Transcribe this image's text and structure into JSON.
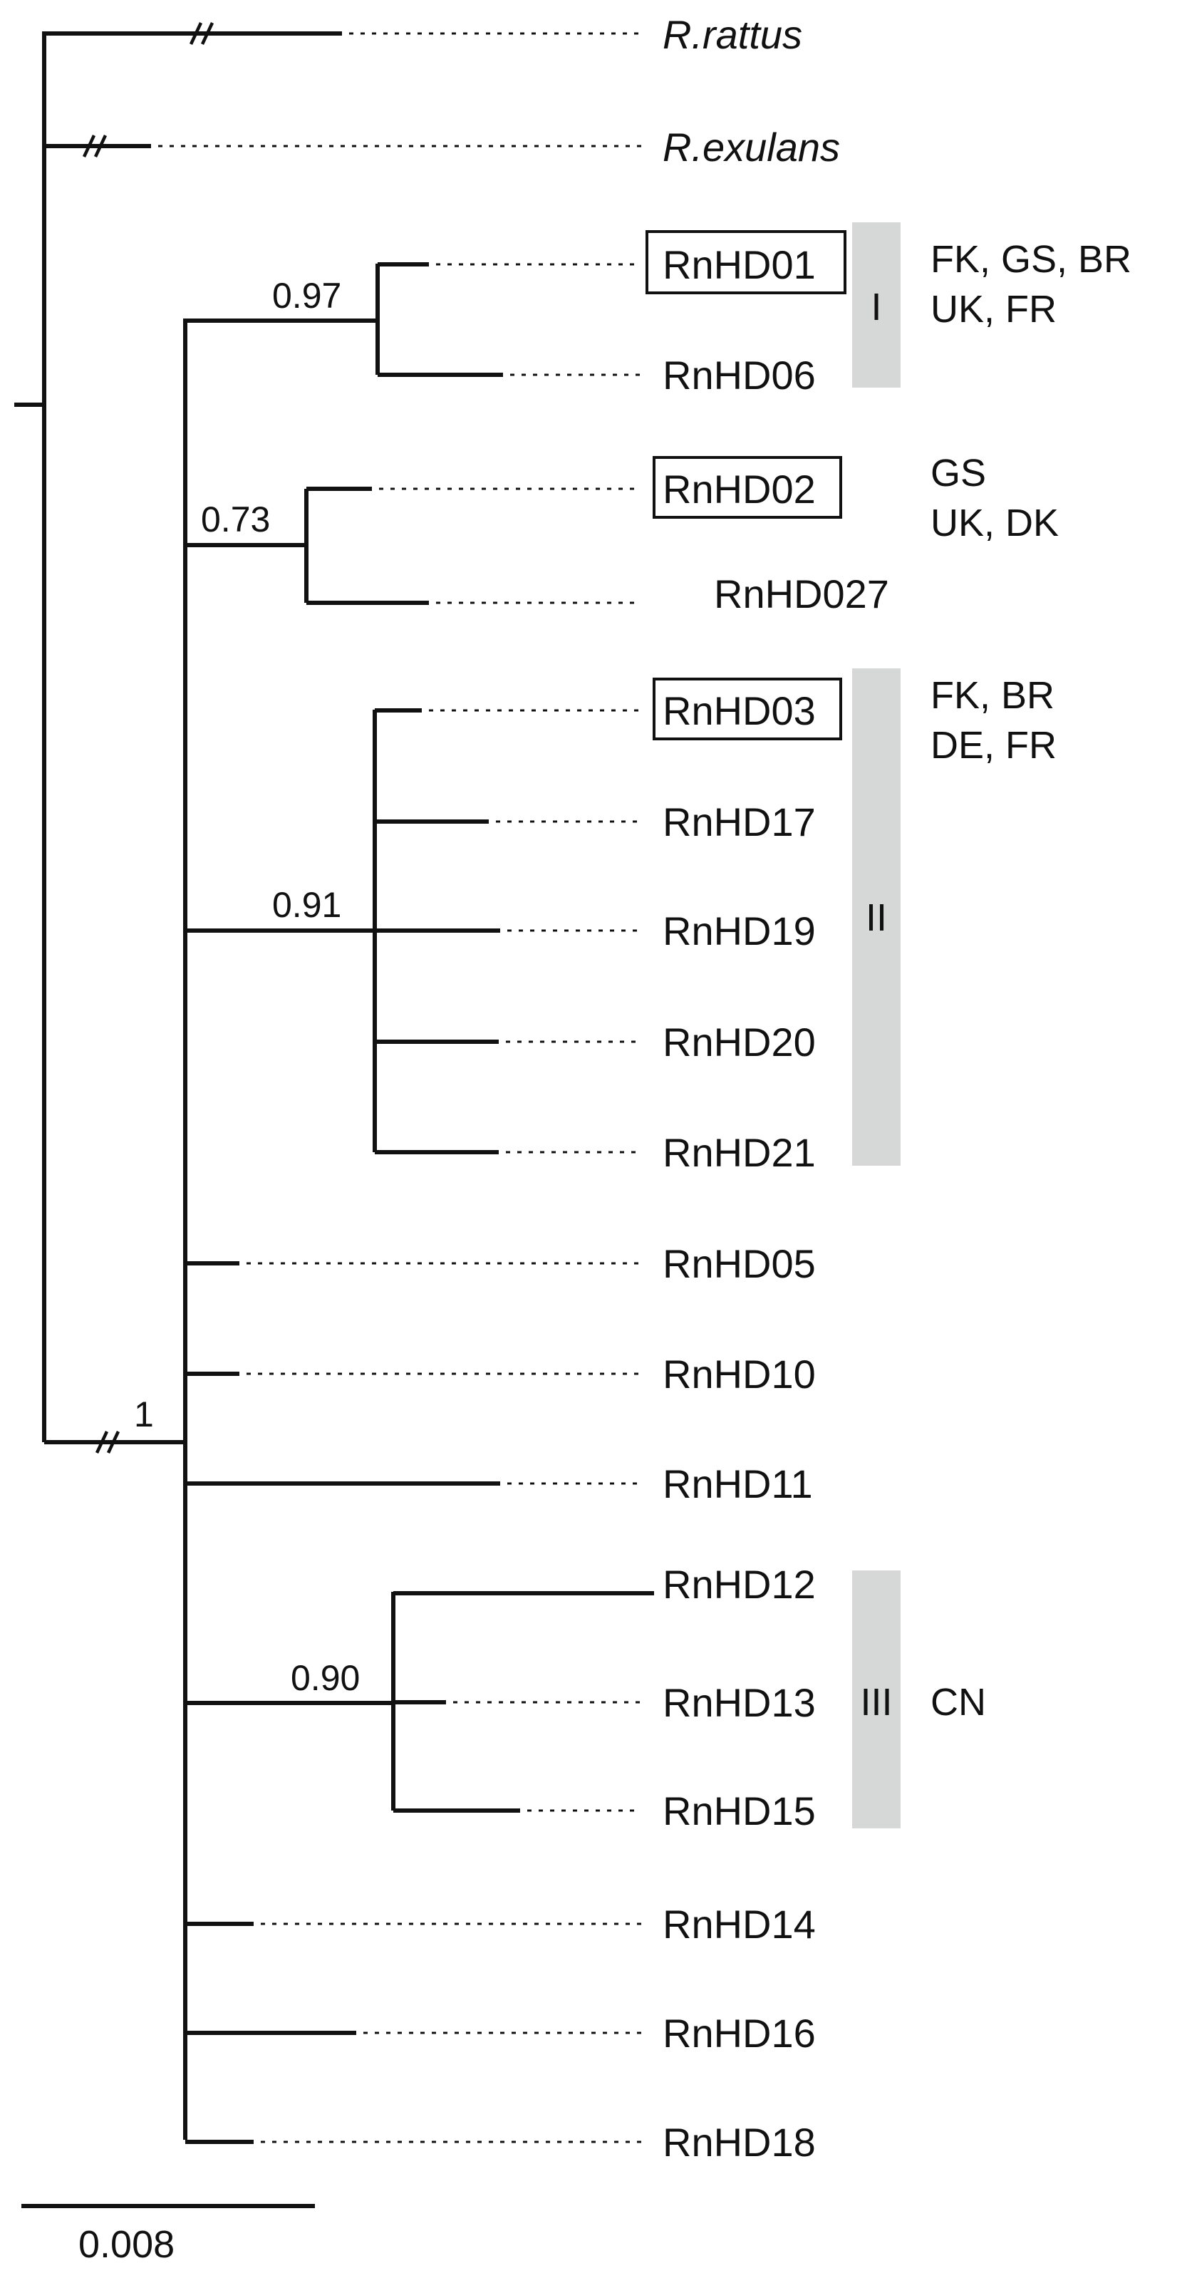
{
  "outgroups": [
    {
      "id": "rattus",
      "label": "R.rattus",
      "italic": true
    },
    {
      "id": "exulans",
      "label": "R.exulans",
      "italic": true
    }
  ],
  "haplotypes": [
    {
      "id": "RnHD01",
      "label": "RnHD01",
      "boxed": true
    },
    {
      "id": "RnHD06",
      "label": "RnHD06",
      "boxed": false
    },
    {
      "id": "RnHD02",
      "label": "RnHD02",
      "boxed": true
    },
    {
      "id": "RnHD027",
      "label": "RnHD027",
      "boxed": false
    },
    {
      "id": "RnHD03",
      "label": "RnHD03",
      "boxed": true
    },
    {
      "id": "RnHD17",
      "label": "RnHD17",
      "boxed": false
    },
    {
      "id": "RnHD19",
      "label": "RnHD19",
      "boxed": false
    },
    {
      "id": "RnHD20",
      "label": "RnHD20",
      "boxed": false
    },
    {
      "id": "RnHD21",
      "label": "RnHD21",
      "boxed": false
    },
    {
      "id": "RnHD05",
      "label": "RnHD05",
      "boxed": false
    },
    {
      "id": "RnHD10",
      "label": "RnHD10",
      "boxed": false
    },
    {
      "id": "RnHD11",
      "label": "RnHD11",
      "boxed": false
    },
    {
      "id": "RnHD12",
      "label": "RnHD12",
      "boxed": false
    },
    {
      "id": "RnHD13",
      "label": "RnHD13",
      "boxed": false
    },
    {
      "id": "RnHD15",
      "label": "RnHD15",
      "boxed": false
    },
    {
      "id": "RnHD14",
      "label": "RnHD14",
      "boxed": false
    },
    {
      "id": "RnHD16",
      "label": "RnHD16",
      "boxed": false
    },
    {
      "id": "RnHD18",
      "label": "RnHD18",
      "boxed": false
    }
  ],
  "support_values": {
    "root_ingroup": "1",
    "clade_I": "0.97",
    "clade_RnHD02": "0.73",
    "clade_II": "0.91",
    "clade_III": "0.90"
  },
  "clades": {
    "I": {
      "label": "I",
      "locations": [
        "FK, GS, BR",
        "UK, FR"
      ]
    },
    "RnHD02": {
      "label": "",
      "locations": [
        "GS",
        "UK, DK"
      ]
    },
    "II": {
      "label": "II",
      "locations": [
        "FK, BR",
        "DE, FR"
      ]
    },
    "III": {
      "label": "III",
      "locations": [
        "CN"
      ]
    }
  },
  "scale_bar": {
    "label": "0.008"
  },
  "colors": {
    "clade_bar": "#d6d8d8",
    "lines": "#111111"
  }
}
